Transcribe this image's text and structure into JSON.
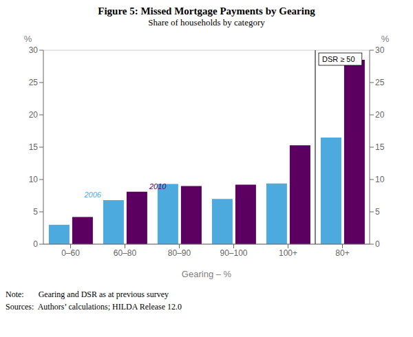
{
  "chart_data": {
    "type": "bar",
    "title": "Figure 5: Missed Mortgage Payments by Gearing",
    "subtitle": "Share of households by category",
    "xlabel": "Gearing – %",
    "ylabel": "%",
    "y2label": "%",
    "categories": [
      "0–60",
      "60–80",
      "80–90",
      "90–100",
      "100+",
      "80+"
    ],
    "series": [
      {
        "name": "2006",
        "color": "#4DAADF",
        "values": [
          3.0,
          6.8,
          9.3,
          7.0,
          9.4,
          16.5
        ]
      },
      {
        "name": "2010",
        "color": "#5B0060",
        "values": [
          4.2,
          8.1,
          9.0,
          9.2,
          15.3,
          28.5
        ]
      }
    ],
    "ylim": [
      0,
      30
    ],
    "yticks": [
      0,
      5,
      10,
      15,
      20,
      25,
      30
    ],
    "y2lim": [
      0,
      30
    ],
    "y2ticks": [
      0,
      5,
      10,
      15,
      20,
      25,
      30
    ],
    "grid": true,
    "annotations": [
      "DSR ≥ 50"
    ],
    "notes": [
      "Note:       Gearing and DSR as at previous survey",
      "Sources:  Authors’ calculations; HILDA Release 12.0"
    ]
  }
}
